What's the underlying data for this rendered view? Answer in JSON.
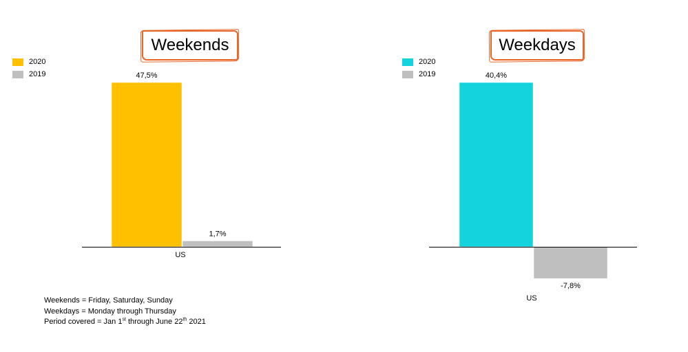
{
  "chart_data": [
    {
      "type": "bar",
      "title": "Weekends",
      "categories": [
        "US"
      ],
      "series": [
        {
          "name": "2020",
          "values": [
            47.5
          ],
          "labels": [
            "47,5%"
          ],
          "color": "#FFC000"
        },
        {
          "name": "2019",
          "values": [
            1.7
          ],
          "labels": [
            "1,7%"
          ],
          "color": "#BFBFBF"
        }
      ],
      "ylim": [
        0,
        47.5
      ],
      "grid": false,
      "legend": "top-left"
    },
    {
      "type": "bar",
      "title": "Weekdays",
      "categories": [
        "US"
      ],
      "series": [
        {
          "name": "2020",
          "values": [
            40.4
          ],
          "labels": [
            "40,4%"
          ],
          "color": "#14D3DC"
        },
        {
          "name": "2019",
          "values": [
            -7.8
          ],
          "labels": [
            "-7,8%"
          ],
          "color": "#BFBFBF"
        }
      ],
      "ylim": [
        -7.8,
        40.4
      ],
      "grid": false,
      "legend": "top-left"
    }
  ],
  "notes": {
    "line1": "Weekends = Friday, Saturday, Sunday",
    "line2": "Weekdays = Monday through Thursday",
    "line3_a": "Period covered  = Jan 1",
    "line3_sup1": "st",
    "line3_b": " through June 22",
    "line3_sup2": "th",
    "line3_c": " 2021"
  },
  "colors": {
    "title_border": "#E8662A",
    "axis": "#000000"
  }
}
